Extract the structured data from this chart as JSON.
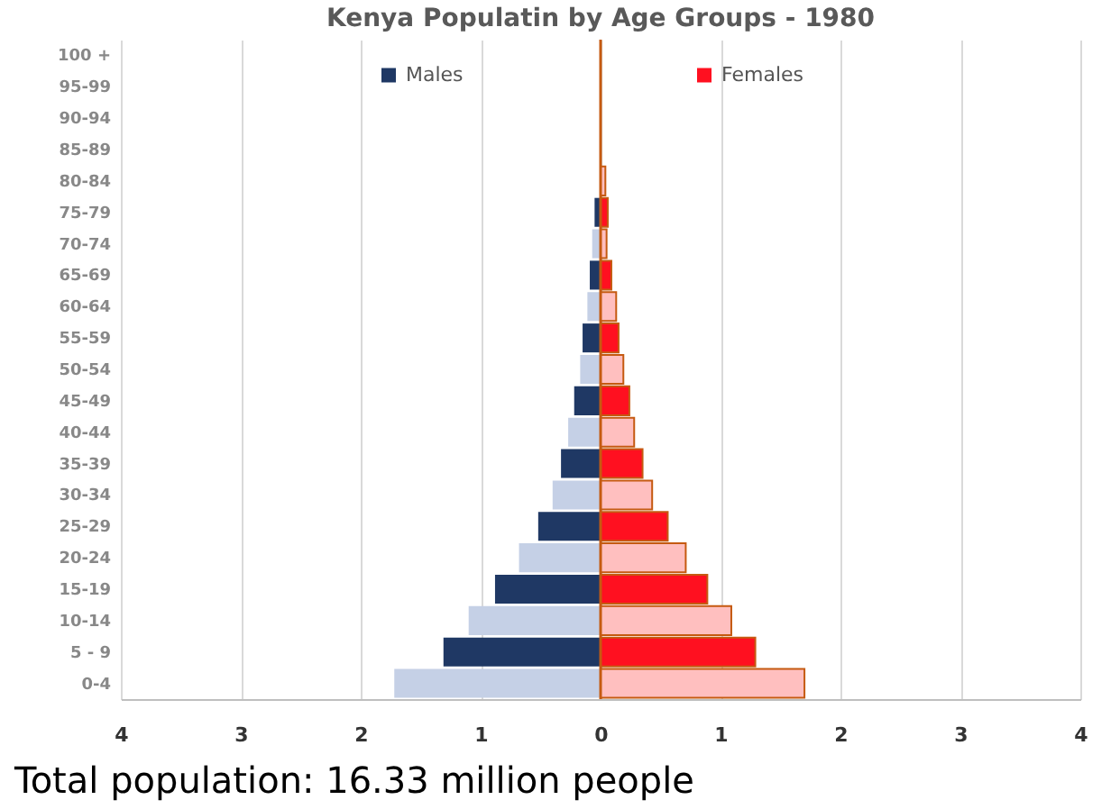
{
  "chart_data": {
    "type": "bar",
    "orientation": "horizontal",
    "title": "Kenya Populatin by Age Groups - 1980",
    "categories": [
      "100 +",
      "95-99",
      "90-94",
      "85-89",
      "80-84",
      "75-79",
      "70-74",
      "65-69",
      "60-64",
      "55-59",
      "50-54",
      "45-49",
      "40-44",
      "35-39",
      "30-34",
      "25-29",
      "20-24",
      "15-19",
      "10-14",
      "5 - 9",
      "0-4"
    ],
    "series": [
      {
        "name": "Males",
        "color": "#1f3864",
        "colors": [
          "#c5d0e6",
          "#1f3864",
          "#c5d0e6",
          "#1f3864",
          "#c5d0e6",
          "#1f3864",
          "#c5d0e6",
          "#1f3864",
          "#c5d0e6",
          "#1f3864",
          "#c5d0e6",
          "#1f3864",
          "#c5d0e6",
          "#1f3864",
          "#c5d0e6",
          "#1f3864",
          "#c5d0e6",
          "#1f3864",
          "#c5d0e6",
          "#1f3864",
          "#c5d0e6"
        ],
        "values": [
          0,
          0,
          0,
          0,
          0,
          -0.05,
          -0.07,
          -0.09,
          -0.11,
          -0.15,
          -0.17,
          -0.22,
          -0.27,
          -0.33,
          -0.4,
          -0.52,
          -0.68,
          -0.88,
          -1.1,
          -1.31,
          -1.72
        ]
      },
      {
        "name": "Females",
        "color": "#ff1020",
        "colors": [
          "#ffbfbf",
          "#ff1020",
          "#ffbfbf",
          "#ff1020",
          "#ffbfbf",
          "#ff1020",
          "#ffbfbf",
          "#ff1020",
          "#ffbfbf",
          "#ff1020",
          "#ffbfbf",
          "#ff1020",
          "#ffbfbf",
          "#ff1020",
          "#ffbfbf",
          "#ff1020",
          "#ffbfbf",
          "#ff1020",
          "#ffbfbf",
          "#ff1020",
          "#ffbfbf"
        ],
        "values": [
          0,
          0,
          0,
          0,
          0.04,
          0.06,
          0.05,
          0.09,
          0.13,
          0.15,
          0.19,
          0.24,
          0.28,
          0.35,
          0.43,
          0.56,
          0.71,
          0.89,
          1.09,
          1.29,
          1.7
        ]
      }
    ],
    "xlim": [
      -4,
      4
    ],
    "xticks": [
      {
        "value": -4,
        "label": "4"
      },
      {
        "value": -3,
        "label": "3"
      },
      {
        "value": -2,
        "label": "2"
      },
      {
        "value": -1,
        "label": "1"
      },
      0,
      1,
      2,
      3,
      4
    ],
    "grid": "x",
    "legend": "top",
    "stacked": true,
    "ref_lines": [
      {
        "axis": "x",
        "value": 0,
        "color": "#c55a11"
      }
    ],
    "annotations": [
      "Total population: 16.33 million people"
    ]
  }
}
